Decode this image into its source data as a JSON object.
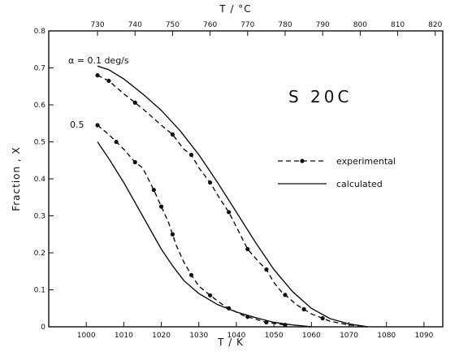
{
  "chart_data": {
    "type": "line",
    "xlabel": "T / K",
    "ylabel": "Fraction , X",
    "top_xlabel": "T / °C",
    "xlim": [
      990,
      1095
    ],
    "ylim": [
      0,
      0.8
    ],
    "x_ticks": [
      1000,
      1010,
      1020,
      1030,
      1040,
      1050,
      1060,
      1070,
      1080,
      1090
    ],
    "x_tick_labels": [
      "1000",
      "1010",
      "1020",
      "1030",
      "1040",
      "1050",
      "1060",
      "1070",
      "1080",
      "1090"
    ],
    "y_ticks": [
      0,
      0.1,
      0.2,
      0.3,
      0.4,
      0.5,
      0.6,
      0.7,
      0.8
    ],
    "y_tick_labels": [
      "0",
      "0.1",
      "0.2",
      "0.3",
      "0.4",
      "0.5",
      "0.6",
      "0.7",
      "0.8"
    ],
    "top_ticks_K": [
      1003,
      1013,
      1023,
      1033,
      1043,
      1053,
      1063,
      1073,
      1083,
      1093
    ],
    "top_tick_labels": [
      "730",
      "740",
      "750",
      "760",
      "770",
      "780",
      "790",
      "800",
      "810",
      "820"
    ],
    "annotations": {
      "alpha_label": "α = 0.1 deg/s",
      "rate_label_05": "0.5",
      "steel_label": "S 20C"
    },
    "legend": [
      {
        "label": "experimental",
        "style": "dashed-dot"
      },
      {
        "label": "calculated",
        "style": "solid"
      }
    ],
    "series": [
      {
        "legend_entry": "experimental",
        "rate": "0.1",
        "points": [
          [
            1003,
            0.68
          ],
          [
            1006,
            0.665
          ],
          [
            1010,
            0.63
          ],
          [
            1015,
            0.59
          ],
          [
            1020,
            0.545
          ],
          [
            1023,
            0.52
          ],
          [
            1026,
            0.48
          ],
          [
            1028,
            0.465
          ],
          [
            1030,
            0.43
          ],
          [
            1033,
            0.39
          ],
          [
            1036,
            0.34
          ],
          [
            1038,
            0.31
          ],
          [
            1040,
            0.27
          ],
          [
            1043,
            0.21
          ],
          [
            1046,
            0.175
          ],
          [
            1048,
            0.155
          ],
          [
            1050,
            0.12
          ],
          [
            1052,
            0.095
          ],
          [
            1056,
            0.06
          ],
          [
            1060,
            0.035
          ],
          [
            1065,
            0.015
          ],
          [
            1070,
            0.005
          ],
          [
            1075,
            0
          ]
        ],
        "marker_x": [
          1003,
          1006,
          1013,
          1023,
          1028,
          1033,
          1038,
          1043,
          1048,
          1053,
          1058,
          1063
        ]
      },
      {
        "legend_entry": "calculated",
        "rate": "0.1",
        "points": [
          [
            1003,
            0.705
          ],
          [
            1006,
            0.695
          ],
          [
            1010,
            0.67
          ],
          [
            1015,
            0.63
          ],
          [
            1020,
            0.585
          ],
          [
            1025,
            0.53
          ],
          [
            1030,
            0.465
          ],
          [
            1035,
            0.39
          ],
          [
            1040,
            0.31
          ],
          [
            1045,
            0.23
          ],
          [
            1050,
            0.155
          ],
          [
            1055,
            0.095
          ],
          [
            1060,
            0.05
          ],
          [
            1065,
            0.022
          ],
          [
            1070,
            0.008
          ],
          [
            1075,
            0
          ]
        ]
      },
      {
        "legend_entry": "experimental",
        "rate": "0.5",
        "points": [
          [
            1003,
            0.545
          ],
          [
            1006,
            0.52
          ],
          [
            1008,
            0.5
          ],
          [
            1010,
            0.48
          ],
          [
            1013,
            0.445
          ],
          [
            1015,
            0.43
          ],
          [
            1018,
            0.37
          ],
          [
            1020,
            0.325
          ],
          [
            1022,
            0.28
          ],
          [
            1024,
            0.22
          ],
          [
            1026,
            0.175
          ],
          [
            1028,
            0.14
          ],
          [
            1030,
            0.11
          ],
          [
            1033,
            0.085
          ],
          [
            1037,
            0.055
          ],
          [
            1042,
            0.03
          ],
          [
            1048,
            0.012
          ],
          [
            1053,
            0.005
          ]
        ],
        "marker_x": [
          1003,
          1008,
          1013,
          1018,
          1020,
          1023,
          1028,
          1033,
          1038,
          1043,
          1048,
          1053
        ]
      },
      {
        "legend_entry": "calculated",
        "rate": "0.5",
        "points": [
          [
            1003,
            0.5
          ],
          [
            1006,
            0.455
          ],
          [
            1010,
            0.39
          ],
          [
            1015,
            0.3
          ],
          [
            1020,
            0.21
          ],
          [
            1023,
            0.165
          ],
          [
            1026,
            0.125
          ],
          [
            1030,
            0.09
          ],
          [
            1035,
            0.06
          ],
          [
            1040,
            0.04
          ],
          [
            1045,
            0.025
          ],
          [
            1050,
            0.012
          ],
          [
            1055,
            0.005
          ],
          [
            1060,
            0
          ]
        ]
      }
    ]
  }
}
